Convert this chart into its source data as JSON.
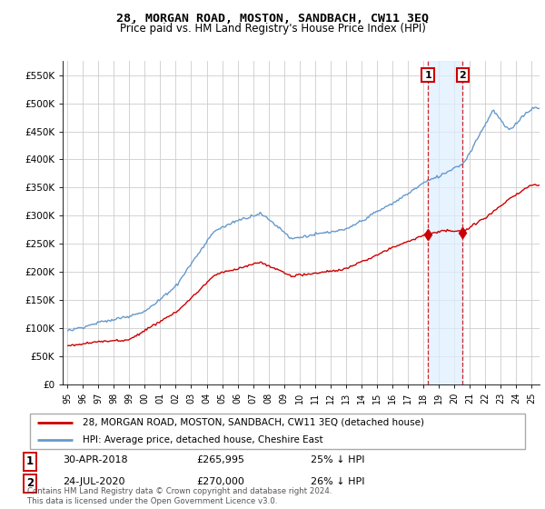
{
  "title": "28, MORGAN ROAD, MOSTON, SANDBACH, CW11 3EQ",
  "subtitle": "Price paid vs. HM Land Registry's House Price Index (HPI)",
  "hpi_color": "#6699cc",
  "price_color": "#cc0000",
  "dashed_line_color": "#cc0000",
  "shade_color": "#ddeeff",
  "background_color": "#ffffff",
  "plot_bg_color": "#ffffff",
  "grid_color": "#cccccc",
  "legend_label_price": "28, MORGAN ROAD, MOSTON, SANDBACH, CW11 3EQ (detached house)",
  "legend_label_hpi": "HPI: Average price, detached house, Cheshire East",
  "annotation1_date": "30-APR-2018",
  "annotation1_price": "£265,995",
  "annotation1_pct": "25% ↓ HPI",
  "annotation2_date": "24-JUL-2020",
  "annotation2_price": "£270,000",
  "annotation2_pct": "26% ↓ HPI",
  "footer": "Contains HM Land Registry data © Crown copyright and database right 2024.\nThis data is licensed under the Open Government Licence v3.0.",
  "sale1_year": 2018,
  "sale1_month": 4,
  "sale1_price": 265995,
  "sale2_year": 2020,
  "sale2_month": 7,
  "sale2_price": 270000,
  "yticks": [
    0,
    50000,
    100000,
    150000,
    200000,
    250000,
    300000,
    350000,
    400000,
    450000,
    500000,
    550000
  ],
  "ylim_top": 575000,
  "xlim_start": 1994.7,
  "xlim_end": 2025.5,
  "xlabel_years": [
    "95",
    "96",
    "97",
    "98",
    "99",
    "00",
    "01",
    "02",
    "03",
    "04",
    "05",
    "06",
    "07",
    "08",
    "09",
    "10",
    "11",
    "12",
    "13",
    "14",
    "15",
    "16",
    "17",
    "18",
    "19",
    "20",
    "21",
    "22",
    "23",
    "24",
    "25"
  ],
  "xlabel_year_positions": [
    1995,
    1996,
    1997,
    1998,
    1999,
    2000,
    2001,
    2002,
    2003,
    2004,
    2005,
    2006,
    2007,
    2008,
    2009,
    2010,
    2011,
    2012,
    2013,
    2014,
    2015,
    2016,
    2017,
    2018,
    2019,
    2020,
    2021,
    2022,
    2023,
    2024,
    2025
  ]
}
